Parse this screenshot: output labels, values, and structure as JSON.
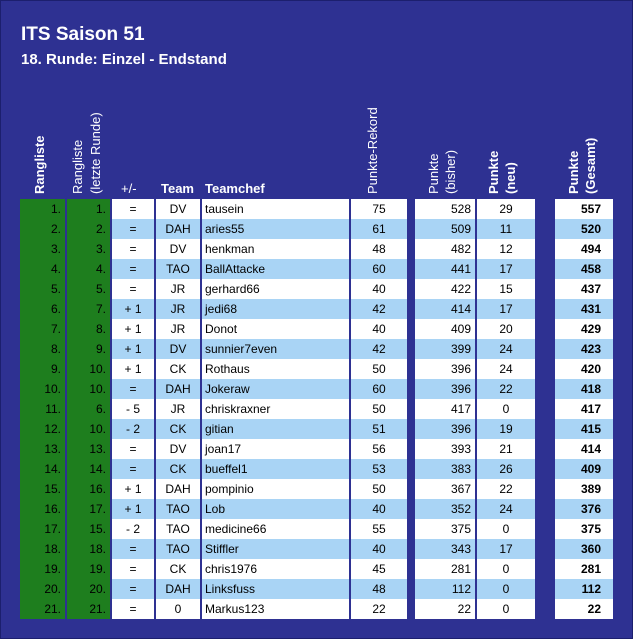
{
  "title": "ITS Saison 51",
  "subtitle": "18. Runde: Einzel - Endstand",
  "headers": {
    "rangliste": "Rangliste",
    "rangliste_letzte_1": "Rangliste",
    "rangliste_letzte_2": "(letzte Runde)",
    "diff": "+/-",
    "team": "Team",
    "teamchef": "Teamchef",
    "rekord": "Punkte-Rekord",
    "bisher_1": "Punkte",
    "bisher_2": "(bisher)",
    "neu_1": "Punkte",
    "neu_2": "(neu)",
    "gesamt_1": "Punkte",
    "gesamt_2": "(Gesamt)"
  },
  "colors": {
    "background": "#2e3192",
    "rank_green": "#1e7e1e",
    "row_light": "#ffffff",
    "row_alt": "#a9d4f5"
  },
  "rows": [
    {
      "rank": "1.",
      "prev": "1.",
      "diff": "=",
      "team": "DV",
      "chef": "tausein",
      "rekord": "75",
      "bisher": "528",
      "neu": "29",
      "gesamt": "557"
    },
    {
      "rank": "2.",
      "prev": "2.",
      "diff": "=",
      "team": "DAH",
      "chef": "aries55",
      "rekord": "61",
      "bisher": "509",
      "neu": "11",
      "gesamt": "520"
    },
    {
      "rank": "3.",
      "prev": "3.",
      "diff": "=",
      "team": "DV",
      "chef": "henkman",
      "rekord": "48",
      "bisher": "482",
      "neu": "12",
      "gesamt": "494"
    },
    {
      "rank": "4.",
      "prev": "4.",
      "diff": "=",
      "team": "TAO",
      "chef": "BallAttacke",
      "rekord": "60",
      "bisher": "441",
      "neu": "17",
      "gesamt": "458"
    },
    {
      "rank": "5.",
      "prev": "5.",
      "diff": "=",
      "team": "JR",
      "chef": "gerhard66",
      "rekord": "40",
      "bisher": "422",
      "neu": "15",
      "gesamt": "437"
    },
    {
      "rank": "6.",
      "prev": "7.",
      "diff": "+ 1",
      "team": "JR",
      "chef": "jedi68",
      "rekord": "42",
      "bisher": "414",
      "neu": "17",
      "gesamt": "431"
    },
    {
      "rank": "7.",
      "prev": "8.",
      "diff": "+ 1",
      "team": "JR",
      "chef": "Donot",
      "rekord": "40",
      "bisher": "409",
      "neu": "20",
      "gesamt": "429"
    },
    {
      "rank": "8.",
      "prev": "9.",
      "diff": "+ 1",
      "team": "DV",
      "chef": "sunnier7even",
      "rekord": "42",
      "bisher": "399",
      "neu": "24",
      "gesamt": "423"
    },
    {
      "rank": "9.",
      "prev": "10.",
      "diff": "+ 1",
      "team": "CK",
      "chef": "Rothaus",
      "rekord": "50",
      "bisher": "396",
      "neu": "24",
      "gesamt": "420"
    },
    {
      "rank": "10.",
      "prev": "10.",
      "diff": "=",
      "team": "DAH",
      "chef": "Jokeraw",
      "rekord": "60",
      "bisher": "396",
      "neu": "22",
      "gesamt": "418"
    },
    {
      "rank": "11.",
      "prev": "6.",
      "diff": "- 5",
      "team": "JR",
      "chef": "chriskraxner",
      "rekord": "50",
      "bisher": "417",
      "neu": "0",
      "gesamt": "417"
    },
    {
      "rank": "12.",
      "prev": "10.",
      "diff": "- 2",
      "team": "CK",
      "chef": "gitian",
      "rekord": "51",
      "bisher": "396",
      "neu": "19",
      "gesamt": "415"
    },
    {
      "rank": "13.",
      "prev": "13.",
      "diff": "=",
      "team": "DV",
      "chef": "joan17",
      "rekord": "56",
      "bisher": "393",
      "neu": "21",
      "gesamt": "414"
    },
    {
      "rank": "14.",
      "prev": "14.",
      "diff": "=",
      "team": "CK",
      "chef": "bueffel1",
      "rekord": "53",
      "bisher": "383",
      "neu": "26",
      "gesamt": "409"
    },
    {
      "rank": "15.",
      "prev": "16.",
      "diff": "+ 1",
      "team": "DAH",
      "chef": "pompinio",
      "rekord": "50",
      "bisher": "367",
      "neu": "22",
      "gesamt": "389"
    },
    {
      "rank": "16.",
      "prev": "17.",
      "diff": "+ 1",
      "team": "TAO",
      "chef": "Lob",
      "rekord": "40",
      "bisher": "352",
      "neu": "24",
      "gesamt": "376"
    },
    {
      "rank": "17.",
      "prev": "15.",
      "diff": "- 2",
      "team": "TAO",
      "chef": "medicine66",
      "rekord": "55",
      "bisher": "375",
      "neu": "0",
      "gesamt": "375"
    },
    {
      "rank": "18.",
      "prev": "18.",
      "diff": "=",
      "team": "TAO",
      "chef": "Stiffler",
      "rekord": "40",
      "bisher": "343",
      "neu": "17",
      "gesamt": "360"
    },
    {
      "rank": "19.",
      "prev": "19.",
      "diff": "=",
      "team": "CK",
      "chef": "chris1976",
      "rekord": "45",
      "bisher": "281",
      "neu": "0",
      "gesamt": "281"
    },
    {
      "rank": "20.",
      "prev": "20.",
      "diff": "=",
      "team": "DAH",
      "chef": "Linksfuss",
      "rekord": "48",
      "bisher": "112",
      "neu": "0",
      "gesamt": "112"
    },
    {
      "rank": "21.",
      "prev": "21.",
      "diff": "=",
      "team": "0",
      "chef": "Markus123",
      "rekord": "22",
      "bisher": "22",
      "neu": "0",
      "gesamt": "22"
    }
  ]
}
